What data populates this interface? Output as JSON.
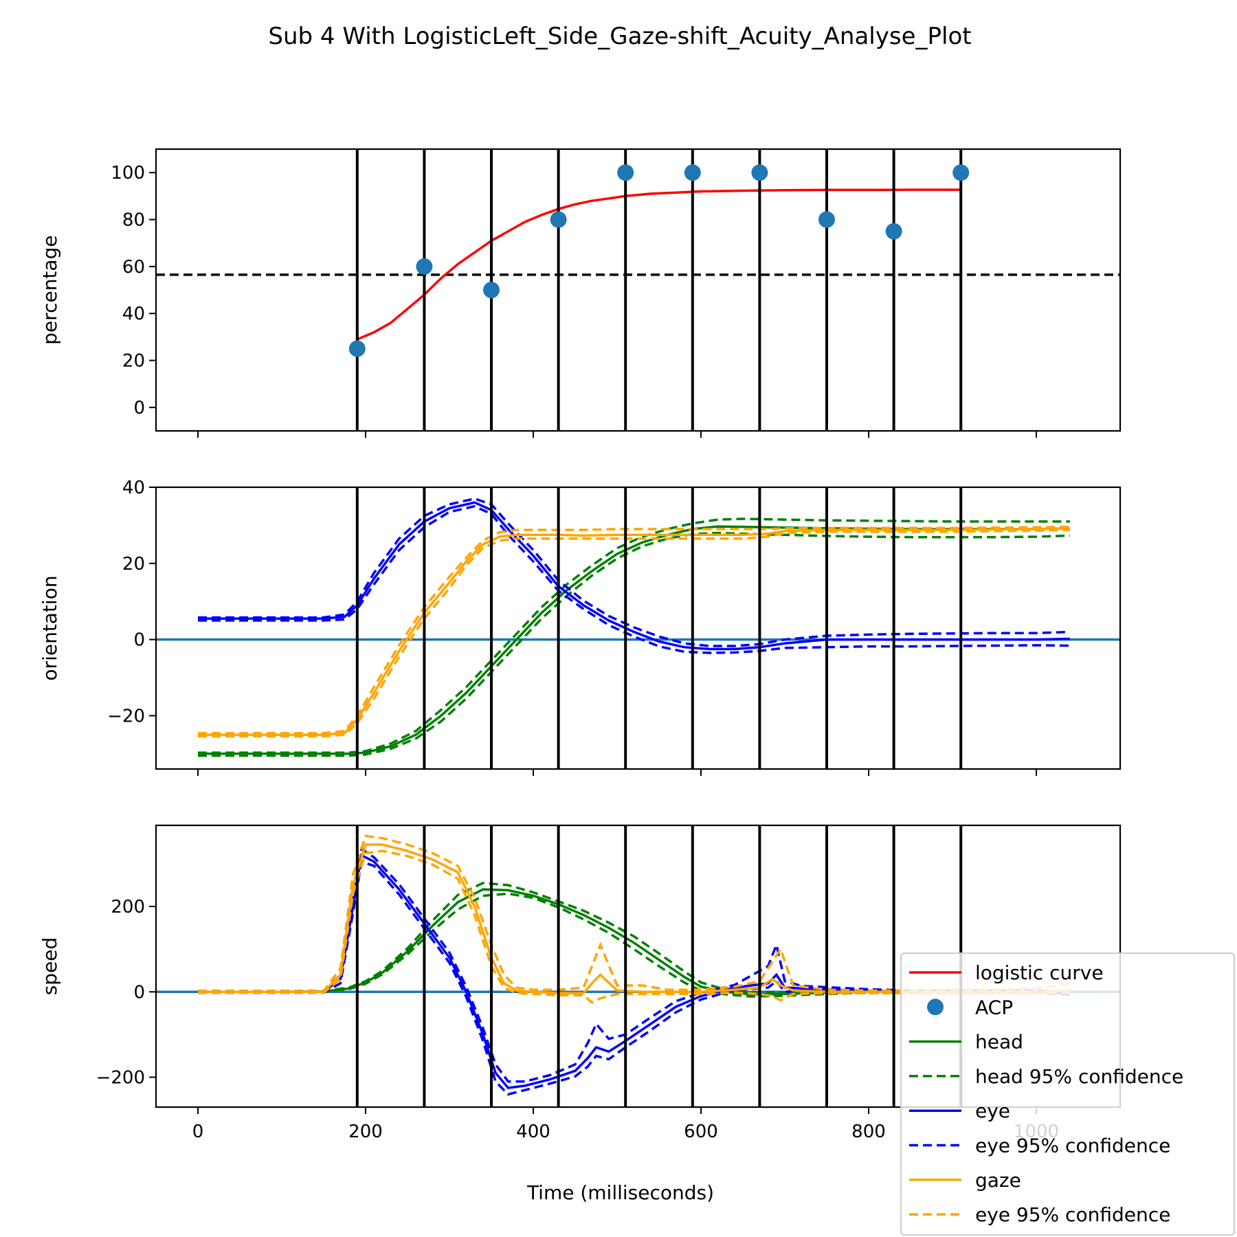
{
  "title": "Sub 4 With LogisticLeft_Side_Gaze-shift_Acuity_Analyse_Plot",
  "chart_data": {
    "type": "line",
    "xlabel": "Time (milliseconds)",
    "xlim": [
      -50,
      1100
    ],
    "xticks": [
      0,
      200,
      400,
      600,
      800,
      1000
    ],
    "vlines": [
      190,
      270,
      350,
      430,
      510,
      590,
      670,
      750,
      830,
      910
    ],
    "panels": [
      {
        "id": "percentage",
        "ylabel": "percentage",
        "ylim": [
          -10,
          110
        ],
        "yticks": [
          0,
          20,
          40,
          60,
          80,
          100
        ],
        "hline_dashed": 56.5,
        "acp_points": {
          "x": [
            190,
            270,
            350,
            430,
            510,
            590,
            670,
            750,
            830,
            910
          ],
          "y": [
            25,
            60,
            50,
            80,
            100,
            100,
            100,
            80,
            75,
            100
          ]
        },
        "logistic": {
          "x": [
            190,
            210,
            230,
            250,
            270,
            290,
            310,
            330,
            350,
            370,
            390,
            410,
            430,
            450,
            470,
            490,
            510,
            540,
            570,
            600,
            650,
            700,
            750,
            800,
            850,
            910
          ],
          "y": [
            29,
            32,
            36,
            42,
            48,
            55,
            61,
            66,
            71,
            75,
            79,
            82,
            84.5,
            86.5,
            88,
            89,
            90,
            91,
            91.5,
            92,
            92.3,
            92.5,
            92.6,
            92.6,
            92.7,
            92.7
          ]
        }
      },
      {
        "id": "orientation",
        "ylabel": "orientation",
        "ylim": [
          -34,
          40
        ],
        "yticks": [
          -20,
          0,
          20,
          40
        ],
        "hline_solid": 0,
        "series": [
          {
            "name": "head",
            "x": [
              0,
              100,
              150,
              180,
              200,
              230,
              260,
              290,
              320,
              350,
              380,
              410,
              440,
              470,
              500,
              530,
              560,
              590,
              620,
              650,
              700,
              750,
              800,
              850,
              900,
              950,
              1000,
              1040
            ],
            "y": [
              -30,
              -30,
              -30,
              -30,
              -29.7,
              -28,
              -25,
              -20,
              -14,
              -7,
              0,
              7,
              13,
              18,
              22.5,
              25.5,
              27.5,
              29,
              29.7,
              29.6,
              29.4,
              29.2,
              29.1,
              29,
              29,
              29,
              29,
              29.2
            ],
            "ci_lo": [
              -30.5,
              -30.5,
              -30.5,
              -30.5,
              -30.2,
              -28.7,
              -26,
              -21.5,
              -15.5,
              -8.5,
              -1.5,
              5.5,
              11.5,
              16.8,
              21.3,
              24.5,
              26.5,
              27.7,
              28,
              27.8,
              27.5,
              27.2,
              27,
              26.9,
              26.9,
              26.9,
              27,
              27.3
            ],
            "ci_hi": [
              -29.7,
              -29.7,
              -29.7,
              -29.7,
              -29.3,
              -27.3,
              -24,
              -18.5,
              -12.5,
              -5.5,
              1.5,
              8.5,
              14.5,
              19.5,
              24,
              27,
              29,
              30.5,
              31.5,
              31.7,
              31.5,
              31.3,
              31.2,
              31.1,
              31,
              31,
              31,
              31
            ]
          },
          {
            "name": "eye",
            "x": [
              0,
              100,
              150,
              175,
              190,
              210,
              240,
              270,
              300,
              330,
              350,
              370,
              400,
              430,
              460,
              490,
              520,
              550,
              580,
              610,
              640,
              670,
              700,
              750,
              800,
              850,
              900,
              950,
              1000,
              1040
            ],
            "y": [
              5.5,
              5.5,
              5.5,
              6,
              9,
              16,
              25,
              31,
              34.5,
              36,
              34,
              29,
              22,
              14,
              9,
              5,
              2,
              -0.5,
              -2,
              -2.5,
              -2.5,
              -2,
              -1,
              0,
              0,
              0,
              0,
              0,
              0,
              0.2
            ],
            "ci_lo": [
              5,
              5,
              5,
              5.3,
              8,
              14.5,
              23.5,
              29.5,
              33.5,
              35,
              33,
              27.5,
              20.5,
              12.8,
              8,
              3.8,
              0.8,
              -1.8,
              -3.2,
              -3.5,
              -3.4,
              -3,
              -2.2,
              -2,
              -1.8,
              -1.8,
              -1.7,
              -1.6,
              -1.5,
              -1.6
            ],
            "ci_hi": [
              5.8,
              5.8,
              5.8,
              6.6,
              10,
              17.5,
              26.5,
              32.5,
              35.5,
              37,
              35.5,
              30.5,
              23.5,
              15.5,
              10.2,
              6.2,
              3.2,
              0.8,
              -1,
              -1.7,
              -1.7,
              -1.2,
              0,
              1,
              1.3,
              1.5,
              1.6,
              1.7,
              1.7,
              2
            ]
          },
          {
            "name": "gaze",
            "x": [
              0,
              100,
              150,
              175,
              190,
              210,
              240,
              270,
              300,
              320,
              340,
              360,
              380,
              400,
              430,
              460,
              500,
              550,
              600,
              650,
              680,
              700,
              750,
              800,
              850,
              900,
              950,
              1000,
              1040
            ],
            "y": [
              -25,
              -25,
              -25,
              -24.5,
              -21,
              -14,
              -3,
              7,
              15,
              20.5,
              25,
              27,
              27.5,
              27.5,
              27.5,
              27.3,
              27.5,
              27.5,
              27.5,
              27.5,
              27.8,
              28.5,
              28.8,
              28.8,
              28.8,
              28.8,
              28.9,
              29,
              29.2
            ],
            "ci_lo": [
              -25.4,
              -25.4,
              -25.4,
              -25,
              -22,
              -15.5,
              -4.5,
              5.5,
              13.5,
              19.5,
              24,
              26,
              26.5,
              26.5,
              26.5,
              26.5,
              26.5,
              26.5,
              26.5,
              26.5,
              27,
              28,
              28.3,
              28.3,
              28.3,
              28.3,
              28.5,
              28.6,
              28.8
            ],
            "ci_hi": [
              -24.6,
              -24.6,
              -24.6,
              -24,
              -20,
              -12.5,
              -1.5,
              8.5,
              16.5,
              21.5,
              26,
              28.2,
              28.8,
              28.8,
              28.8,
              28.8,
              29,
              29,
              29,
              29,
              29,
              29.2,
              29.3,
              29.3,
              29.3,
              29.3,
              29.4,
              29.5,
              29.6
            ]
          }
        ]
      },
      {
        "id": "speed",
        "ylabel": "speed",
        "ylim": [
          -270,
          390
        ],
        "yticks": [
          -200,
          0,
          200
        ],
        "hline_solid": 0,
        "series": [
          {
            "name": "head",
            "x": [
              0,
              100,
              150,
              180,
              200,
              220,
              250,
              280,
              310,
              340,
              370,
              400,
              430,
              460,
              490,
              520,
              550,
              580,
              600,
              630,
              660,
              700,
              750,
              800,
              850,
              900,
              950,
              1000,
              1040
            ],
            "y": [
              0,
              0,
              1,
              8,
              22,
              45,
              95,
              155,
              210,
              240,
              238,
              225,
              205,
              180,
              150,
              115,
              75,
              35,
              12,
              0,
              -6,
              -5,
              -2,
              0,
              0,
              0,
              0,
              0,
              0
            ],
            "ci_lo": [
              -1,
              -1,
              0,
              6,
              19,
              41,
              88,
              143,
              193,
              225,
              230,
              220,
              198,
              170,
              138,
              100,
              60,
              22,
              3,
              -6,
              -11,
              -9,
              -5,
              -2,
              -1,
              -1,
              -1,
              -1,
              -1
            ],
            "ci_hi": [
              1,
              1,
              2,
              10,
              25,
              49,
              102,
              167,
              227,
              255,
              250,
              233,
              212,
              190,
              162,
              130,
              90,
              48,
              22,
              5,
              -1,
              -1,
              1,
              2,
              1,
              1,
              1,
              1,
              1
            ]
          },
          {
            "name": "eye",
            "x": [
              0,
              100,
              150,
              170,
              185,
              195,
              210,
              240,
              270,
              300,
              320,
              340,
              355,
              370,
              390,
              420,
              450,
              465,
              475,
              490,
              510,
              540,
              570,
              600,
              640,
              680,
              690,
              700,
              720,
              760,
              800,
              850,
              900,
              950,
              1000,
              1040
            ],
            "y": [
              0,
              0,
              0,
              30,
              200,
              320,
              305,
              240,
              160,
              80,
              0,
              -100,
              -190,
              -225,
              -220,
              -205,
              -185,
              -155,
              -130,
              -140,
              -115,
              -75,
              -35,
              -10,
              10,
              20,
              40,
              10,
              8,
              5,
              3,
              0,
              0,
              0,
              0,
              -3
            ],
            "ci_lo": [
              -2,
              -2,
              -2,
              20,
              185,
              305,
              295,
              228,
              148,
              68,
              -12,
              -115,
              -210,
              -240,
              -230,
              -215,
              -198,
              -175,
              -150,
              -158,
              -130,
              -90,
              -48,
              -18,
              4,
              10,
              25,
              0,
              3,
              1,
              0,
              -3,
              -3,
              -3,
              -3,
              -6
            ],
            "ci_hi": [
              2,
              2,
              2,
              40,
              215,
              335,
              315,
              252,
              172,
              92,
              12,
              -85,
              -170,
              -210,
              -210,
              -195,
              -170,
              -120,
              -75,
              -110,
              -100,
              -60,
              -22,
              -2,
              16,
              60,
              110,
              25,
              14,
              10,
              6,
              3,
              3,
              3,
              3,
              0
            ]
          },
          {
            "name": "gaze",
            "x": [
              0,
              100,
              150,
              170,
              185,
              200,
              220,
              250,
              280,
              310,
              330,
              350,
              365,
              380,
              400,
              430,
              460,
              470,
              480,
              500,
              530,
              560,
              600,
              640,
              670,
              685,
              695,
              710,
              750,
              800,
              850,
              900,
              950,
              1000,
              1040
            ],
            "y": [
              0,
              0,
              0,
              40,
              250,
              345,
              345,
              330,
              310,
              280,
              200,
              80,
              20,
              3,
              0,
              -3,
              -3,
              20,
              40,
              3,
              0,
              0,
              0,
              5,
              10,
              30,
              15,
              3,
              0,
              0,
              0,
              0,
              0,
              0,
              2
            ],
            "ci_lo": [
              -2,
              -2,
              -2,
              30,
              230,
              325,
              330,
              318,
              298,
              265,
              180,
              60,
              10,
              -3,
              -5,
              -8,
              -8,
              -25,
              -15,
              -5,
              -5,
              -5,
              -5,
              -2,
              -5,
              -10,
              -20,
              -5,
              -3,
              -3,
              -3,
              -3,
              -3,
              -3,
              -3
            ],
            "ci_hi": [
              2,
              2,
              2,
              55,
              275,
              365,
              360,
              345,
              325,
              295,
              220,
              110,
              40,
              10,
              5,
              5,
              10,
              60,
              110,
              15,
              15,
              5,
              5,
              12,
              25,
              70,
              100,
              15,
              5,
              3,
              3,
              5,
              5,
              8,
              20
            ]
          }
        ]
      }
    ],
    "legend": {
      "placement": "lower-right",
      "entries": [
        {
          "label": "logistic curve",
          "color": "#ff0000",
          "style": "solid"
        },
        {
          "label": "ACP",
          "color": "#1f77b4",
          "style": "marker"
        },
        {
          "label": "head",
          "color": "#008000",
          "style": "solid"
        },
        {
          "label": "head 95% confidence",
          "color": "#008000",
          "style": "dashed"
        },
        {
          "label": "eye",
          "color": "#0000ff",
          "style": "solid"
        },
        {
          "label": "eye 95% confidence",
          "color": "#0000ff",
          "style": "dashed"
        },
        {
          "label": "gaze",
          "color": "#ffa500",
          "style": "solid"
        },
        {
          "label": "eye 95% confidence",
          "color": "#ffa500",
          "style": "dashed"
        }
      ]
    },
    "colors": {
      "head": "#008000",
      "eye": "#0000ff",
      "gaze": "#ffa500",
      "logistic": "#ff0000",
      "acp": "#1f77b4",
      "zero_line": "#1f77b4"
    }
  }
}
